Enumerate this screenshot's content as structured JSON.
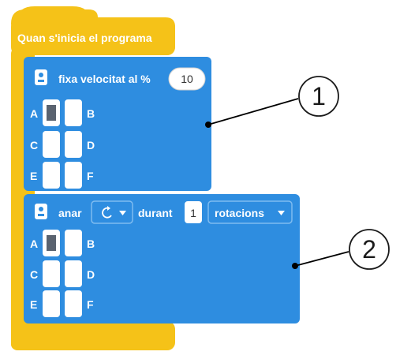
{
  "hat_block": {
    "label": "Quan s'inicia el programa"
  },
  "block1": {
    "label": "fixa velocitat al %",
    "value": "10",
    "icon": "motor-icon",
    "ports": {
      "A": "A",
      "B": "B",
      "C": "C",
      "D": "D",
      "E": "E",
      "F": "F"
    }
  },
  "block2": {
    "label_go": "anar",
    "direction_icon": "rotate-clockwise-icon",
    "label_during": "durant",
    "value": "1",
    "unit": "rotacions",
    "icon": "motor-icon",
    "ports": {
      "A": "A",
      "B": "B",
      "C": "C",
      "D": "D",
      "E": "E",
      "F": "F"
    }
  },
  "callouts": [
    {
      "number": "1"
    },
    {
      "number": "2"
    }
  ],
  "colors": {
    "hat": "#f5c218",
    "block": "#2e8de0",
    "port_selected": "#5a6370",
    "callout_line": "#000000"
  }
}
